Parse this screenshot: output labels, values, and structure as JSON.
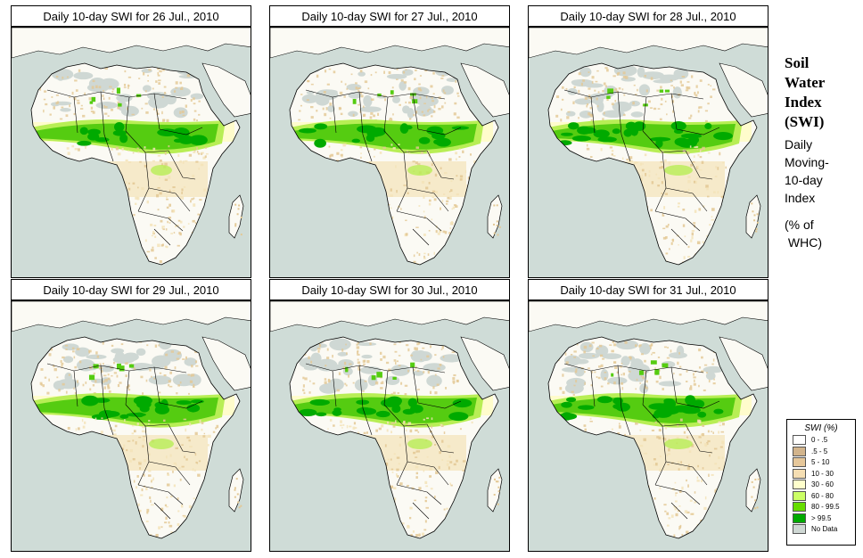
{
  "panels": [
    {
      "title": "Daily 10-day SWI for  26 Jul., 2010",
      "wet_level": 1
    },
    {
      "title": "Daily 10-day SWI for  27 Jul., 2010",
      "wet_level": 2
    },
    {
      "title": "Daily 10-day SWI for  28 Jul., 2010",
      "wet_level": 3
    },
    {
      "title": "Daily 10-day SWI for  29 Jul., 2010",
      "wet_level": 2
    },
    {
      "title": "Daily 10-day SWI for  30 Jul., 2010",
      "wet_level": 2
    },
    {
      "title": "Daily 10-day SWI for  31 Jul., 2010",
      "wet_level": 3
    }
  ],
  "side": {
    "title_lines": [
      "Soil",
      "Water",
      "Index",
      "(SWI)"
    ],
    "sub_lines": [
      "Daily",
      "Moving-",
      "10-day",
      "Index"
    ],
    "units_lines": [
      "(% of",
      " WHC)"
    ]
  },
  "legend": {
    "title": "SWI (%)",
    "items": [
      {
        "label": "0 - .5",
        "color": "#ffffff"
      },
      {
        "label": ".5 - 5",
        "color": "#d2b48c"
      },
      {
        "label": "5 - 10",
        "color": "#e6c79a"
      },
      {
        "label": "10 - 30",
        "color": "#f5deb3"
      },
      {
        "label": "30 - 60",
        "color": "#ffffcc"
      },
      {
        "label": "60 - 80",
        "color": "#ccff66"
      },
      {
        "label": "80 - 99.5",
        "color": "#66dd00"
      },
      {
        "label": "> 99.5",
        "color": "#00aa00"
      },
      {
        "label": "No Data",
        "color": "#cfd8d4"
      }
    ]
  },
  "colors": {
    "sea": "#cfdcd7",
    "land": "#fbfaf4",
    "dry": "#e3c894",
    "semi": "#f3e3b8",
    "moist": "#fffccc",
    "green_light": "#b8ee55",
    "green_mid": "#55cc11",
    "green_dark": "#00aa00",
    "nodata": "#cfd8d4"
  }
}
